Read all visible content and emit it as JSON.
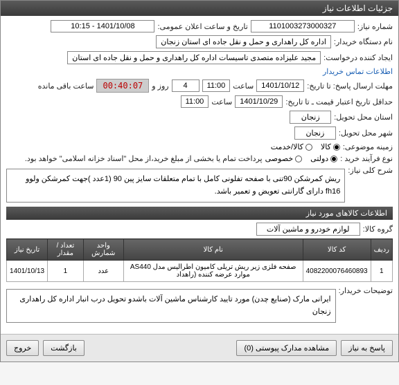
{
  "header": {
    "title": "جزئیات اطلاعات نیاز"
  },
  "fields": {
    "need_number_label": "شماره نیاز:",
    "need_number": "1101003273000327",
    "announce_label": "تاریخ و ساعت اعلان عمومی:",
    "announce_value": "1401/10/08 - 10:15",
    "buyer_org_label": "نام دستگاه خریدار:",
    "buyer_org": "اداره کل راهداری و حمل و نقل جاده ای استان زنجان",
    "creator_label": "ایجاد کننده درخواست:",
    "creator": "مجید علیزاده متصدی تاسیسات اداره کل راهداری و حمل و نقل جاده ای استان",
    "contact_link": "اطلاعات تماس خریدار",
    "deadline_label": "مهلت ارسال پاسخ: تا تاریخ:",
    "deadline_date": "1401/10/12",
    "time_label": "ساعت",
    "deadline_time": "11:00",
    "day_label": "روز و",
    "days": "4",
    "remaining_label": "ساعت باقی مانده",
    "timer": "00:40:07",
    "validity_label": "حداقل تاریخ اعتبار قیمت ـ تا تاریخ:",
    "validity_date": "1401/10/29",
    "validity_time": "11:00",
    "province_label": "استان محل تحویل:",
    "province": "زنجان",
    "city_label": "شهر محل تحویل:",
    "city": "زنجان",
    "subject_label": "زمینه موضوعی:",
    "subject_goods": "کالا",
    "subject_services": "کالا/خدمت",
    "process_label": "نوع فرآیند خرید :",
    "process_gov": "دولتی",
    "process_priv": "خصوصی",
    "process_note": "پرداخت تمام یا بخشی از مبلغ خرید،از محل \"اسناد خزانه اسلامی\" خواهد بود.",
    "desc_label": "شرح کلی نیاز:",
    "desc_text": "ریش کمرشکن 90تنی با صفحه تفلونی کامل با تمام متعلقات سایز پین 90 (1عدد )جهت کمرشکن ولوو fh16 دارای گارانتی تعویض و تعمیر باشد.",
    "goods_section": "اطلاعات کالاهای مورد نیاز",
    "group_label": "گروه کالا:",
    "group_value": "لوازم خودرو و ماشین آلات",
    "buyer_note_label": "توضیحات خریدار:",
    "buyer_note": "ایرانی مارک (صنایع چدن) مورد تایید کارشناس ماشین آلات باشدو تحویل درب انبار اداره کل راهداری زنجان"
  },
  "table": {
    "headers": [
      "ردیف",
      "کد کالا",
      "نام کالا",
      "واحد شمارش",
      "تعداد / مقدار",
      "تاریخ نیاز"
    ],
    "rows": [
      [
        "1",
        "4082200076460893",
        "صفحه فلزی زیر ریش تریلی کامیون اطرالیس مدل AS440 موارد عرضه کننده (راهداد",
        "عدد",
        "1",
        "1401/10/13"
      ]
    ]
  },
  "buttons": {
    "reply": "پاسخ به نیاز",
    "attachments": "مشاهده مدارک پیوستی (0)",
    "back": "بازگشت",
    "exit": "خروج"
  }
}
